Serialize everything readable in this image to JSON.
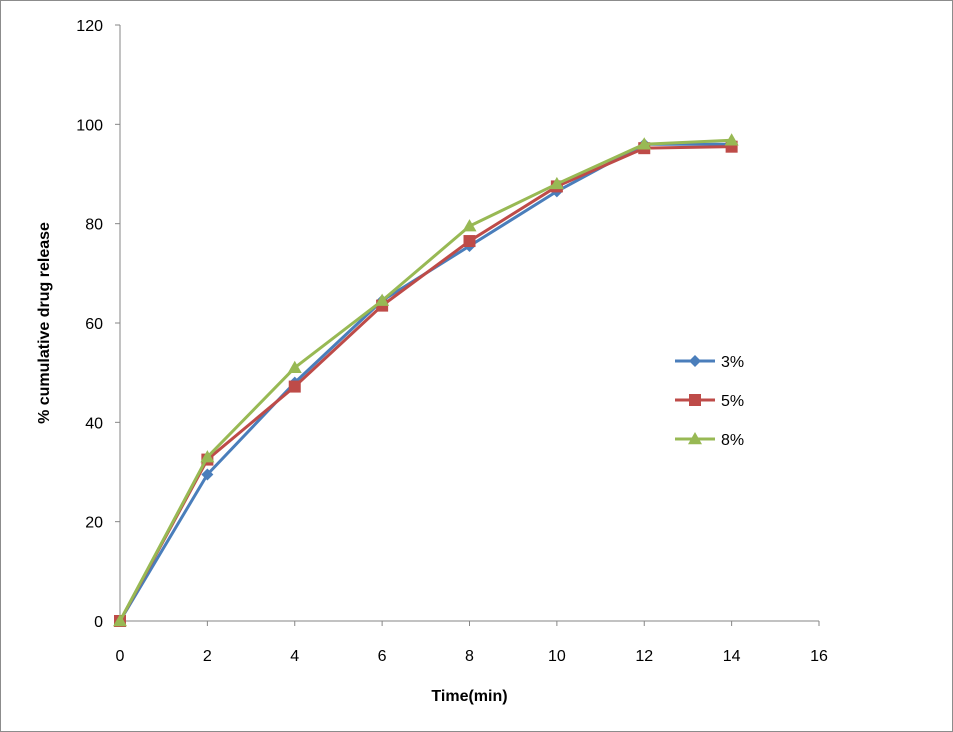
{
  "chart_data": {
    "type": "line",
    "xlabel": "Time(min)",
    "ylabel": "% cumulative drug release",
    "xlim": [
      0,
      16
    ],
    "ylim": [
      0,
      120
    ],
    "xticks": [
      0,
      2,
      4,
      6,
      8,
      10,
      12,
      14,
      16
    ],
    "yticks": [
      0,
      20,
      40,
      60,
      80,
      100,
      120
    ],
    "grid": false,
    "legend_position": "right",
    "x": [
      0,
      2,
      4,
      6,
      8,
      10,
      12,
      14
    ],
    "series": [
      {
        "name": "3%",
        "color": "#4a7ebb",
        "marker": "diamond",
        "values": [
          0,
          29.5,
          48.0,
          64.5,
          75.5,
          86.5,
          96.0,
          96.0
        ]
      },
      {
        "name": "5%",
        "color": "#be4b48",
        "marker": "square",
        "values": [
          0,
          32.5,
          47.2,
          63.5,
          76.5,
          87.5,
          95.2,
          95.5
        ]
      },
      {
        "name": "8%",
        "color": "#98b954",
        "marker": "triangle",
        "values": [
          0,
          33.0,
          51.0,
          64.5,
          79.5,
          88.0,
          96.0,
          96.8
        ]
      }
    ]
  }
}
